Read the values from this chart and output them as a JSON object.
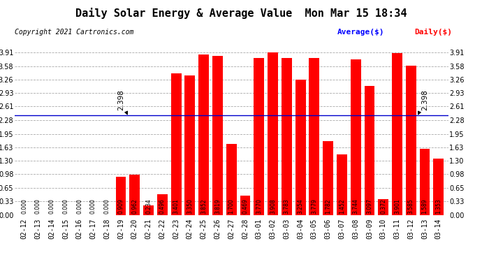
{
  "title": "Daily Solar Energy & Average Value  Mon Mar 15 18:34",
  "copyright": "Copyright 2021 Cartronics.com",
  "legend_avg": "Average($)",
  "legend_daily": "Daily($)",
  "average_value": 2.398,
  "categories": [
    "02-12",
    "02-13",
    "02-14",
    "02-15",
    "02-16",
    "02-17",
    "02-18",
    "02-19",
    "02-20",
    "02-21",
    "02-22",
    "02-23",
    "02-24",
    "02-25",
    "02-26",
    "02-27",
    "02-28",
    "03-01",
    "03-02",
    "03-03",
    "03-04",
    "03-05",
    "03-06",
    "03-07",
    "03-08",
    "03-09",
    "03-10",
    "03-11",
    "03-12",
    "03-13",
    "03-14"
  ],
  "values": [
    0.0,
    0.0,
    0.0,
    0.0,
    0.0,
    0.0,
    0.0,
    0.909,
    0.962,
    0.234,
    0.496,
    3.401,
    3.35,
    3.852,
    3.819,
    1.7,
    0.469,
    3.77,
    3.908,
    3.783,
    3.254,
    3.779,
    1.782,
    1.452,
    3.744,
    3.097,
    0.372,
    3.901,
    3.585,
    1.589,
    1.353
  ],
  "bar_color": "#ff0000",
  "avg_line_color": "#0000cc",
  "background_color": "#ffffff",
  "grid_color": "#aaaaaa",
  "title_color": "#000000",
  "copyright_color": "#000000",
  "legend_avg_color": "#0000ff",
  "legend_daily_color": "#ff0000",
  "ylim": [
    0.0,
    3.91
  ],
  "yticks": [
    0.0,
    0.33,
    0.65,
    0.98,
    1.3,
    1.63,
    1.95,
    2.28,
    2.61,
    2.93,
    3.26,
    3.58,
    3.91
  ],
  "title_fontsize": 11,
  "copyright_fontsize": 7,
  "tick_fontsize": 7,
  "bar_label_fontsize": 5.5,
  "avg_label_fontsize": 7.5
}
